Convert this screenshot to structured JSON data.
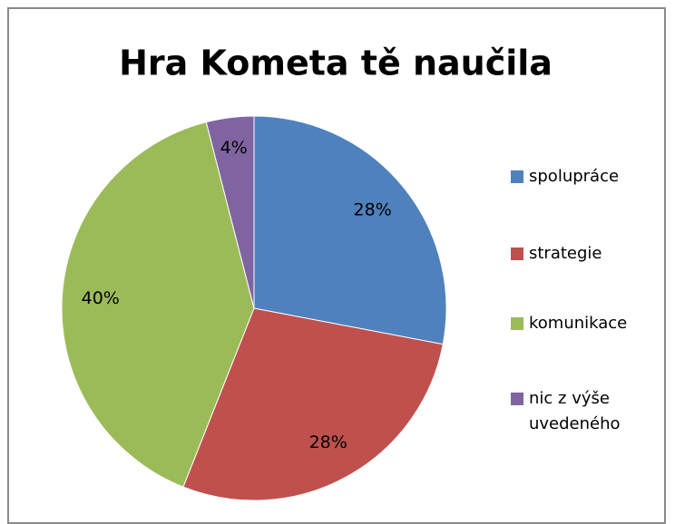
{
  "chart_data": {
    "type": "pie",
    "title": "Hra Kometa tě naučila",
    "categories": [
      "spolupráce",
      "strategie",
      "komunikace",
      "nic z výše uvedeného"
    ],
    "values": [
      28,
      28,
      40,
      4
    ],
    "value_labels": [
      "28%",
      "28%",
      "40%",
      "4%"
    ],
    "colors": [
      "#4f81bd",
      "#c0504d",
      "#9bbb59",
      "#8064a2"
    ],
    "legend": "right"
  }
}
